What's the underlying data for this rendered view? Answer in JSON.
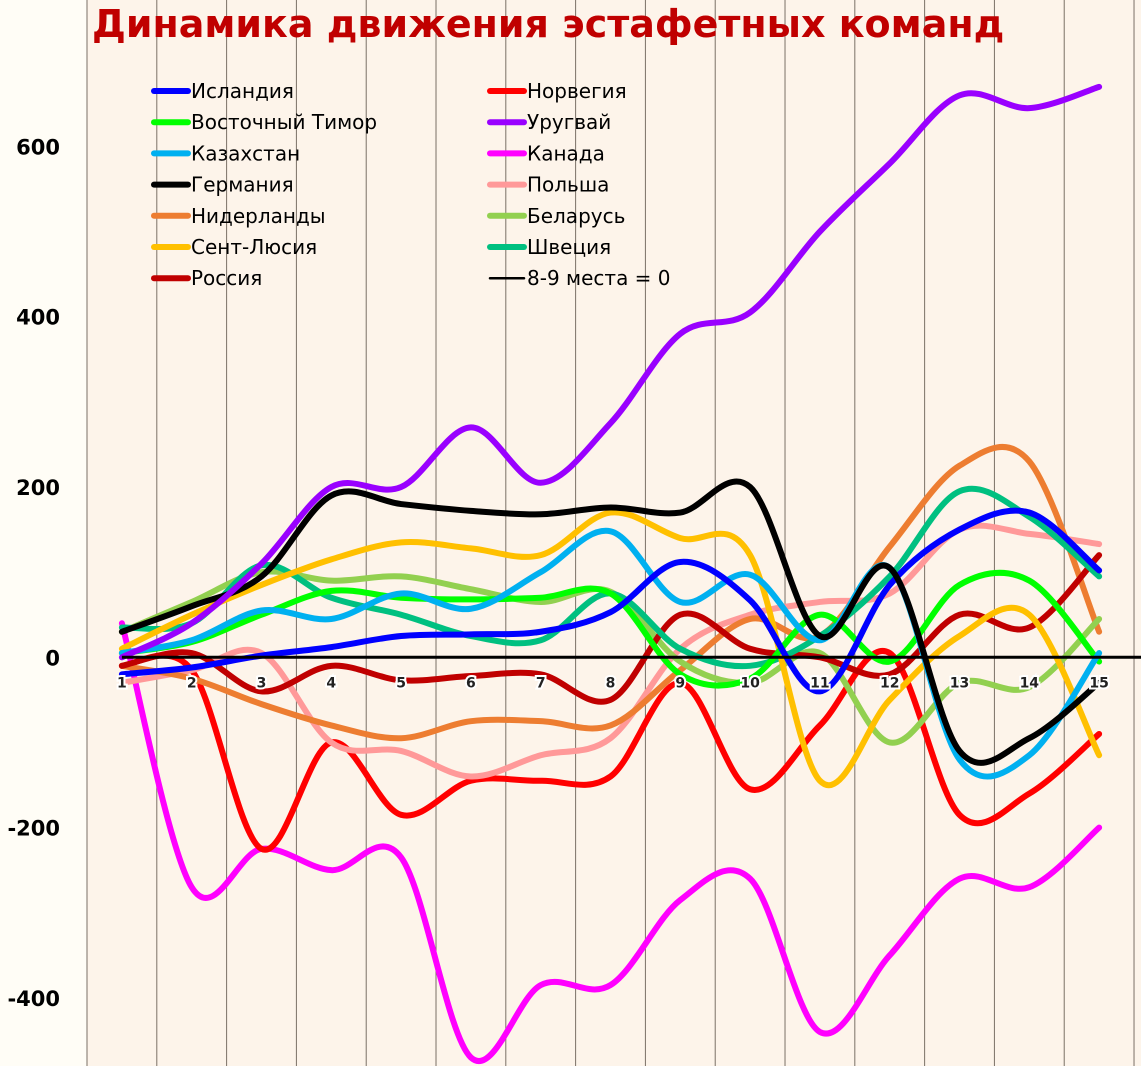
{
  "chart_data": {
    "type": "line",
    "title": "Динамика движения эстафетных команд",
    "xlabel": "",
    "ylabel": "",
    "x": [
      1,
      2,
      3,
      4,
      5,
      6,
      7,
      8,
      9,
      10,
      11,
      12,
      13,
      14,
      15
    ],
    "xlim": [
      0.5,
      15.6
    ],
    "ylim": [
      -480,
      772
    ],
    "yticks": [
      -400,
      -200,
      0,
      200,
      400,
      600
    ],
    "grid": "vertical",
    "legend_position": "top-left",
    "baseline": {
      "name": "8-9 места = 0",
      "value": 0,
      "color": "#000000"
    },
    "series": [
      {
        "name": "Исландия",
        "color": "#0000ff",
        "values": [
          -20,
          -12,
          2,
          12,
          25,
          27,
          30,
          53,
          112,
          67,
          -40,
          85,
          150,
          170,
          102
        ]
      },
      {
        "name": "Восточный Тимор",
        "color": "#00ff00",
        "values": [
          5,
          18,
          50,
          78,
          70,
          68,
          70,
          75,
          -20,
          -25,
          50,
          -5,
          85,
          90,
          -5
        ]
      },
      {
        "name": "Казахстан",
        "color": "#00b0f0",
        "values": [
          5,
          20,
          55,
          45,
          75,
          57,
          100,
          148,
          65,
          97,
          20,
          105,
          -120,
          -115,
          5
        ]
      },
      {
        "name": "Германия",
        "color": "#000000",
        "values": [
          30,
          60,
          95,
          190,
          180,
          172,
          168,
          176,
          170,
          200,
          25,
          105,
          -110,
          -95,
          -30
        ]
      },
      {
        "name": "Нидерланды",
        "color": "#ed7d31",
        "values": [
          -10,
          -25,
          -55,
          -80,
          -95,
          -75,
          -75,
          -80,
          -15,
          45,
          25,
          130,
          225,
          230,
          30
        ]
      },
      {
        "name": "Сент-Люсия",
        "color": "#ffc000",
        "values": [
          10,
          50,
          85,
          115,
          135,
          128,
          120,
          170,
          140,
          120,
          -145,
          -50,
          25,
          50,
          -115
        ]
      },
      {
        "name": "Россия",
        "color": "#c00000",
        "values": [
          -10,
          5,
          -40,
          -10,
          -27,
          -22,
          -20,
          -50,
          50,
          10,
          0,
          -20,
          50,
          35,
          120
        ]
      },
      {
        "name": "Норвегия",
        "color": "#ff0000",
        "values": [
          -10,
          -15,
          -225,
          -100,
          -185,
          -145,
          -145,
          -140,
          -30,
          -155,
          -80,
          5,
          -185,
          -160,
          -90
        ]
      },
      {
        "name": "Уругвай",
        "color": "#9900ff",
        "values": [
          0,
          40,
          110,
          200,
          200,
          270,
          205,
          275,
          380,
          405,
          500,
          580,
          660,
          645,
          670
        ]
      },
      {
        "name": "Канада",
        "color": "#ff00ff",
        "values": [
          40,
          -270,
          -225,
          -250,
          -235,
          -470,
          -385,
          -385,
          -285,
          -260,
          -440,
          -350,
          -260,
          -270,
          -200
        ]
      },
      {
        "name": "Польша",
        "color": "#ff9999",
        "values": [
          -30,
          -15,
          5,
          -100,
          -110,
          -140,
          -115,
          -95,
          10,
          50,
          65,
          75,
          150,
          145,
          133
        ]
      },
      {
        "name": "Беларусь",
        "color": "#92d050",
        "values": [
          30,
          65,
          100,
          90,
          95,
          80,
          65,
          77,
          -5,
          -30,
          5,
          -100,
          -30,
          -35,
          45
        ]
      },
      {
        "name": "Швеция",
        "color": "#00c080",
        "values": [
          35,
          40,
          108,
          70,
          50,
          25,
          20,
          75,
          10,
          -10,
          25,
          95,
          195,
          165,
          95
        ]
      }
    ]
  }
}
